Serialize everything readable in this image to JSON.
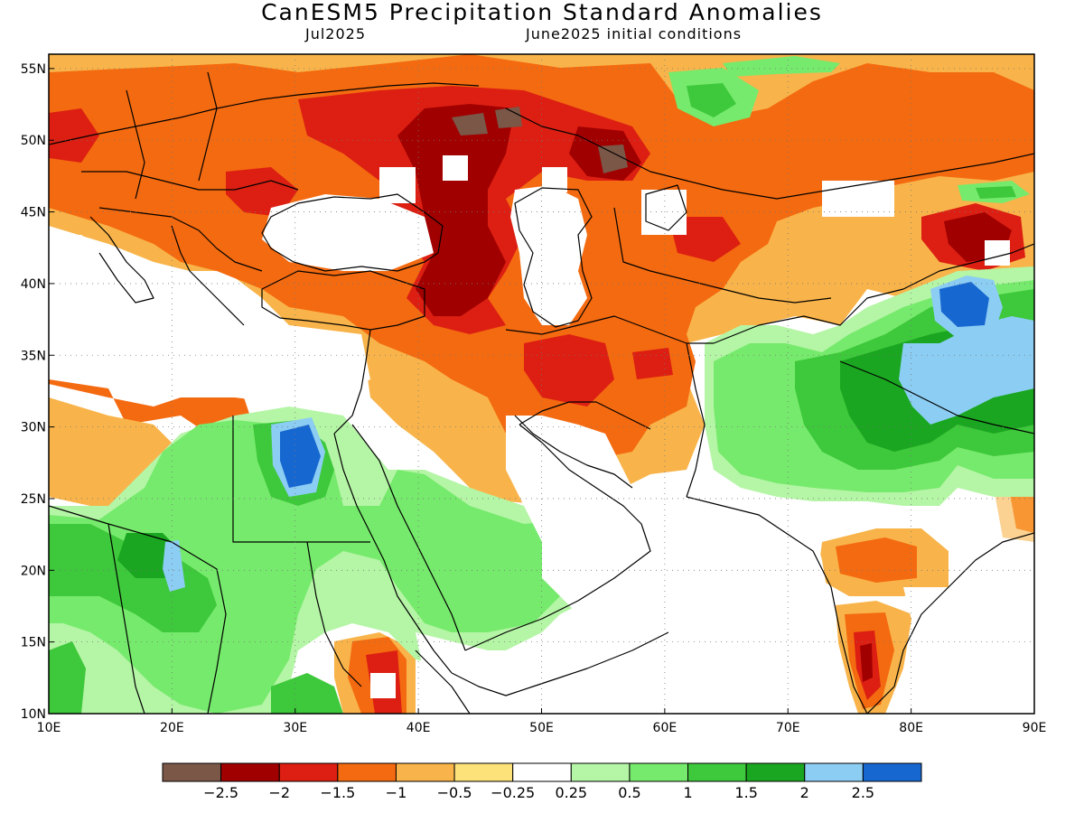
{
  "title": "CanESM5 Precipitation Standard Anomalies",
  "subtitle_left": "Jul2025",
  "subtitle_right": "June2025 initial conditions",
  "map": {
    "lon_range": [
      10,
      90
    ],
    "lat_range": [
      10,
      56
    ],
    "lon_ticks": [
      "10E",
      "20E",
      "30E",
      "40E",
      "50E",
      "60E",
      "70E",
      "80E",
      "90E"
    ],
    "lat_ticks": [
      "10N",
      "15N",
      "20N",
      "25N",
      "30N",
      "35N",
      "40N",
      "45N",
      "50N",
      "55N"
    ],
    "gridlines": true
  },
  "colorbar": {
    "colors": [
      "#7a5747",
      "#a10000",
      "#dc1f12",
      "#f46a10",
      "#f8b44a",
      "#fde27a",
      "#ffffff",
      "#b5f5a6",
      "#76ea6c",
      "#3ec83b",
      "#1aa620",
      "#8ccdf3",
      "#1767d1"
    ],
    "labels": [
      "-2.5",
      "-2",
      "-1.5",
      "-1",
      "-0.5",
      "-0.25",
      "0.25",
      "0.5",
      "1",
      "1.5",
      "2",
      "2.5"
    ]
  },
  "colors": {
    "deep_brown": "#7a5747",
    "dark_red": "#a10000",
    "red": "#dc1f12",
    "orange": "#f46a10",
    "light_orange": "#f8b44a",
    "yellow": "#fde27a",
    "light_green": "#b5f5a6",
    "green": "#76ea6c",
    "mid_green": "#3ec83b",
    "dark_green": "#1aa620",
    "light_blue": "#8ccdf3",
    "blue": "#1767d1"
  }
}
